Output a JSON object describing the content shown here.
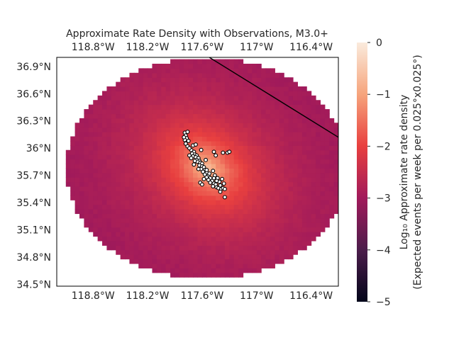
{
  "chart_data": {
    "type": "heatmap",
    "title": "Approximate Rate Density with Observations, M3.0+",
    "x_ticks": [
      "118.8°W",
      "118.2°W",
      "117.6°W",
      "117°W",
      "116.4°W"
    ],
    "x_tick_values": [
      -118.8,
      -118.2,
      -117.6,
      -117.0,
      -116.4
    ],
    "y_ticks": [
      "36.9°N",
      "36.6°N",
      "36.3°N",
      "36°N",
      "35.7°N",
      "35.4°N",
      "35.1°N",
      "34.8°N",
      "34.5°N"
    ],
    "y_tick_values": [
      36.9,
      36.6,
      36.3,
      36.0,
      35.7,
      35.4,
      35.1,
      34.8,
      34.5
    ],
    "xlim": [
      -119.2,
      -116.1
    ],
    "ylim": [
      34.48,
      37.0
    ],
    "heat_center": {
      "lon": -117.55,
      "lat": 35.78
    },
    "region_radius": {
      "lon": 1.55,
      "lat": 1.22
    },
    "colorbar": {
      "range": [
        -5,
        0
      ],
      "ticks": [
        "0",
        "−1",
        "−2",
        "−3",
        "−4",
        "−5"
      ],
      "tick_values": [
        0,
        -1,
        -2,
        -3,
        -4,
        -5
      ],
      "label_line1": "Log₁₀ Approximate rate density",
      "label_line2": "(Expected events per week per 0.025°x0.025°)",
      "colors": [
        "#03051a",
        "#4c1d4b",
        "#a11a5b",
        "#e83f3f",
        "#f6a47c",
        "#faebdd"
      ]
    },
    "fault_line": [
      [
        -117.52,
        37.0
      ],
      [
        -116.1,
        36.12
      ]
    ],
    "observations": [
      [
        -117.79,
        36.17
      ],
      [
        -117.76,
        36.18
      ],
      [
        -117.78,
        36.14
      ],
      [
        -117.77,
        36.11
      ],
      [
        -117.79,
        36.09
      ],
      [
        -117.75,
        36.08
      ],
      [
        -117.78,
        36.05
      ],
      [
        -117.76,
        36.02
      ],
      [
        -117.7,
        36.03
      ],
      [
        -117.67,
        36.04
      ],
      [
        -117.72,
        35.98
      ],
      [
        -117.69,
        35.96
      ],
      [
        -117.71,
        35.94
      ],
      [
        -117.68,
        35.93
      ],
      [
        -117.66,
        35.92
      ],
      [
        -117.7,
        35.91
      ],
      [
        -117.67,
        35.9
      ],
      [
        -117.64,
        35.89
      ],
      [
        -117.66,
        35.87
      ],
      [
        -117.63,
        35.86
      ],
      [
        -117.65,
        35.85
      ],
      [
        -117.62,
        35.84
      ],
      [
        -117.6,
        35.83
      ],
      [
        -117.63,
        35.81
      ],
      [
        -117.6,
        35.8
      ],
      [
        -117.58,
        35.79
      ],
      [
        -117.61,
        35.77
      ],
      [
        -117.57,
        35.76
      ],
      [
        -117.59,
        35.74
      ],
      [
        -117.55,
        35.73
      ],
      [
        -117.57,
        35.71
      ],
      [
        -117.53,
        35.7
      ],
      [
        -117.55,
        35.68
      ],
      [
        -117.51,
        35.67
      ],
      [
        -117.53,
        35.65
      ],
      [
        -117.49,
        35.64
      ],
      [
        -117.51,
        35.62
      ],
      [
        -117.47,
        35.61
      ],
      [
        -117.45,
        35.6
      ],
      [
        -117.48,
        35.58
      ],
      [
        -117.44,
        35.57
      ],
      [
        -117.42,
        35.56
      ],
      [
        -117.39,
        35.55
      ],
      [
        -117.37,
        35.56
      ],
      [
        -117.35,
        35.55
      ],
      [
        -117.4,
        35.59
      ],
      [
        -117.36,
        35.61
      ],
      [
        -117.41,
        35.63
      ],
      [
        -117.38,
        35.66
      ],
      [
        -117.43,
        35.67
      ],
      [
        -117.46,
        35.7
      ],
      [
        -117.62,
        35.62
      ],
      [
        -117.6,
        35.6
      ],
      [
        -117.35,
        35.46
      ],
      [
        -117.32,
        35.95
      ],
      [
        -117.3,
        35.96
      ],
      [
        -117.37,
        35.95
      ],
      [
        -117.47,
        35.96
      ],
      [
        -117.45,
        35.92
      ],
      [
        -117.61,
        35.98
      ],
      [
        -117.74,
        35.92
      ],
      [
        -117.72,
        35.89
      ],
      [
        -117.68,
        35.86
      ],
      [
        -117.55,
        35.76
      ],
      [
        -117.52,
        35.72
      ],
      [
        -117.48,
        35.75
      ],
      [
        -117.44,
        35.64
      ],
      [
        -117.4,
        35.52
      ],
      [
        -117.58,
        35.66
      ],
      [
        -117.64,
        35.77
      ],
      [
        -117.69,
        35.82
      ],
      [
        -117.56,
        35.87
      ],
      [
        -117.74,
        36.0
      ],
      [
        -117.8,
        36.12
      ],
      [
        -117.47,
        35.67
      ]
    ]
  }
}
